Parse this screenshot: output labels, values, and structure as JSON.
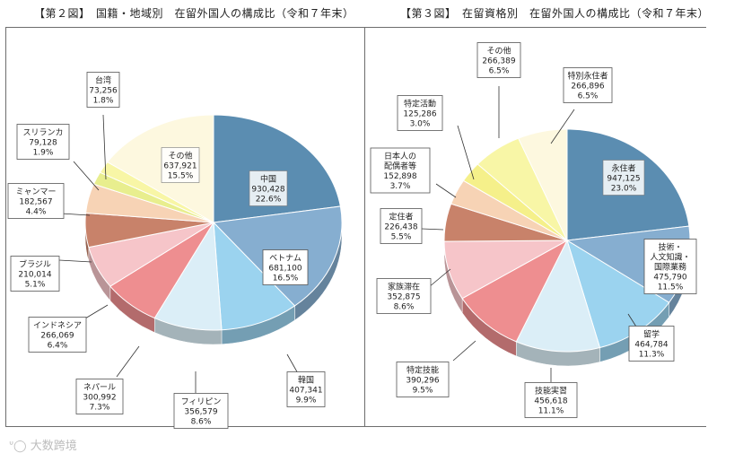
{
  "titles": {
    "left": "【第２図】　国籍・地域別　在留外国人の構成比（令和７年末）",
    "right": "【第３図】　在留資格別　在留外国人の構成比（令和７年末）"
  },
  "watermark": "大数跨境",
  "chart_data": [
    {
      "type": "pie",
      "title": "【第２図】　国籍・地域別　在留外国人の構成比（令和７年末）",
      "slices": [
        {
          "name": "中国",
          "value": "930,428",
          "pct": "22.6%",
          "share": 22.6,
          "color": "#5b8db1"
        },
        {
          "name": "ベトナム",
          "value": "681,100",
          "pct": "16.5%",
          "share": 16.5,
          "color": "#86aed0"
        },
        {
          "name": "韓国",
          "value": "407,341",
          "pct": "9.9%",
          "share": 9.9,
          "color": "#9bd3ef"
        },
        {
          "name": "フィリピン",
          "value": "356,579",
          "pct": "8.6%",
          "share": 8.6,
          "color": "#dbeef7"
        },
        {
          "name": "ネパール",
          "value": "300,992",
          "pct": "7.3%",
          "share": 7.3,
          "color": "#ee8e90"
        },
        {
          "name": "インドネシア",
          "value": "266,069",
          "pct": "6.4%",
          "share": 6.4,
          "color": "#f6c5c9"
        },
        {
          "name": "ブラジル",
          "value": "210,014",
          "pct": "5.1%",
          "share": 5.1,
          "color": "#c8826a"
        },
        {
          "name": "ミャンマー",
          "value": "182,567",
          "pct": "4.4%",
          "share": 4.4,
          "color": "#f7d3b5"
        },
        {
          "name": "スリランカ",
          "value": "79,128",
          "pct": "1.9%",
          "share": 1.9,
          "color": "#e8ee8e"
        },
        {
          "name": "台湾",
          "value": "73,256",
          "pct": "1.8%",
          "share": 1.8,
          "color": "#f8f6a6"
        },
        {
          "name": "その他",
          "value": "637,921",
          "pct": "15.5%",
          "share": 15.5,
          "color": "#fdf8df"
        }
      ]
    },
    {
      "type": "pie",
      "title": "【第３図】　在留資格別　在留外国人の構成比（令和７年末）",
      "slices": [
        {
          "name": "永住者",
          "value": "947,125",
          "pct": "23.0%",
          "share": 23.0,
          "color": "#5b8db1"
        },
        {
          "name": "技術・人文知識・国際業務",
          "value": "475,790",
          "pct": "11.5%",
          "share": 11.5,
          "color": "#86aed0"
        },
        {
          "name": "留学",
          "value": "464,784",
          "pct": "11.3%",
          "share": 11.3,
          "color": "#9bd3ef"
        },
        {
          "name": "技能実習",
          "value": "456,618",
          "pct": "11.1%",
          "share": 11.1,
          "color": "#dbeef7"
        },
        {
          "name": "特定技能",
          "value": "390,296",
          "pct": "9.5%",
          "share": 9.5,
          "color": "#ee8e90"
        },
        {
          "name": "家族滞在",
          "value": "352,875",
          "pct": "8.6%",
          "share": 8.6,
          "color": "#f6c5c9"
        },
        {
          "name": "定住者",
          "value": "226,438",
          "pct": "5.5%",
          "share": 5.5,
          "color": "#c8826a"
        },
        {
          "name": "日本人の配偶者等",
          "value": "152,898",
          "pct": "3.7%",
          "share": 3.7,
          "color": "#f7d3b5"
        },
        {
          "name": "特定活動",
          "value": "125,286",
          "pct": "3.0%",
          "share": 3.0,
          "color": "#f5f08a"
        },
        {
          "name": "その他",
          "value": "266,389",
          "pct": "6.5%",
          "share": 6.5,
          "color": "#f8f6a6"
        },
        {
          "name": "特別永住者",
          "value": "266,896",
          "pct": "6.5%",
          "share": 6.5,
          "color": "#fdf8df"
        }
      ]
    }
  ]
}
